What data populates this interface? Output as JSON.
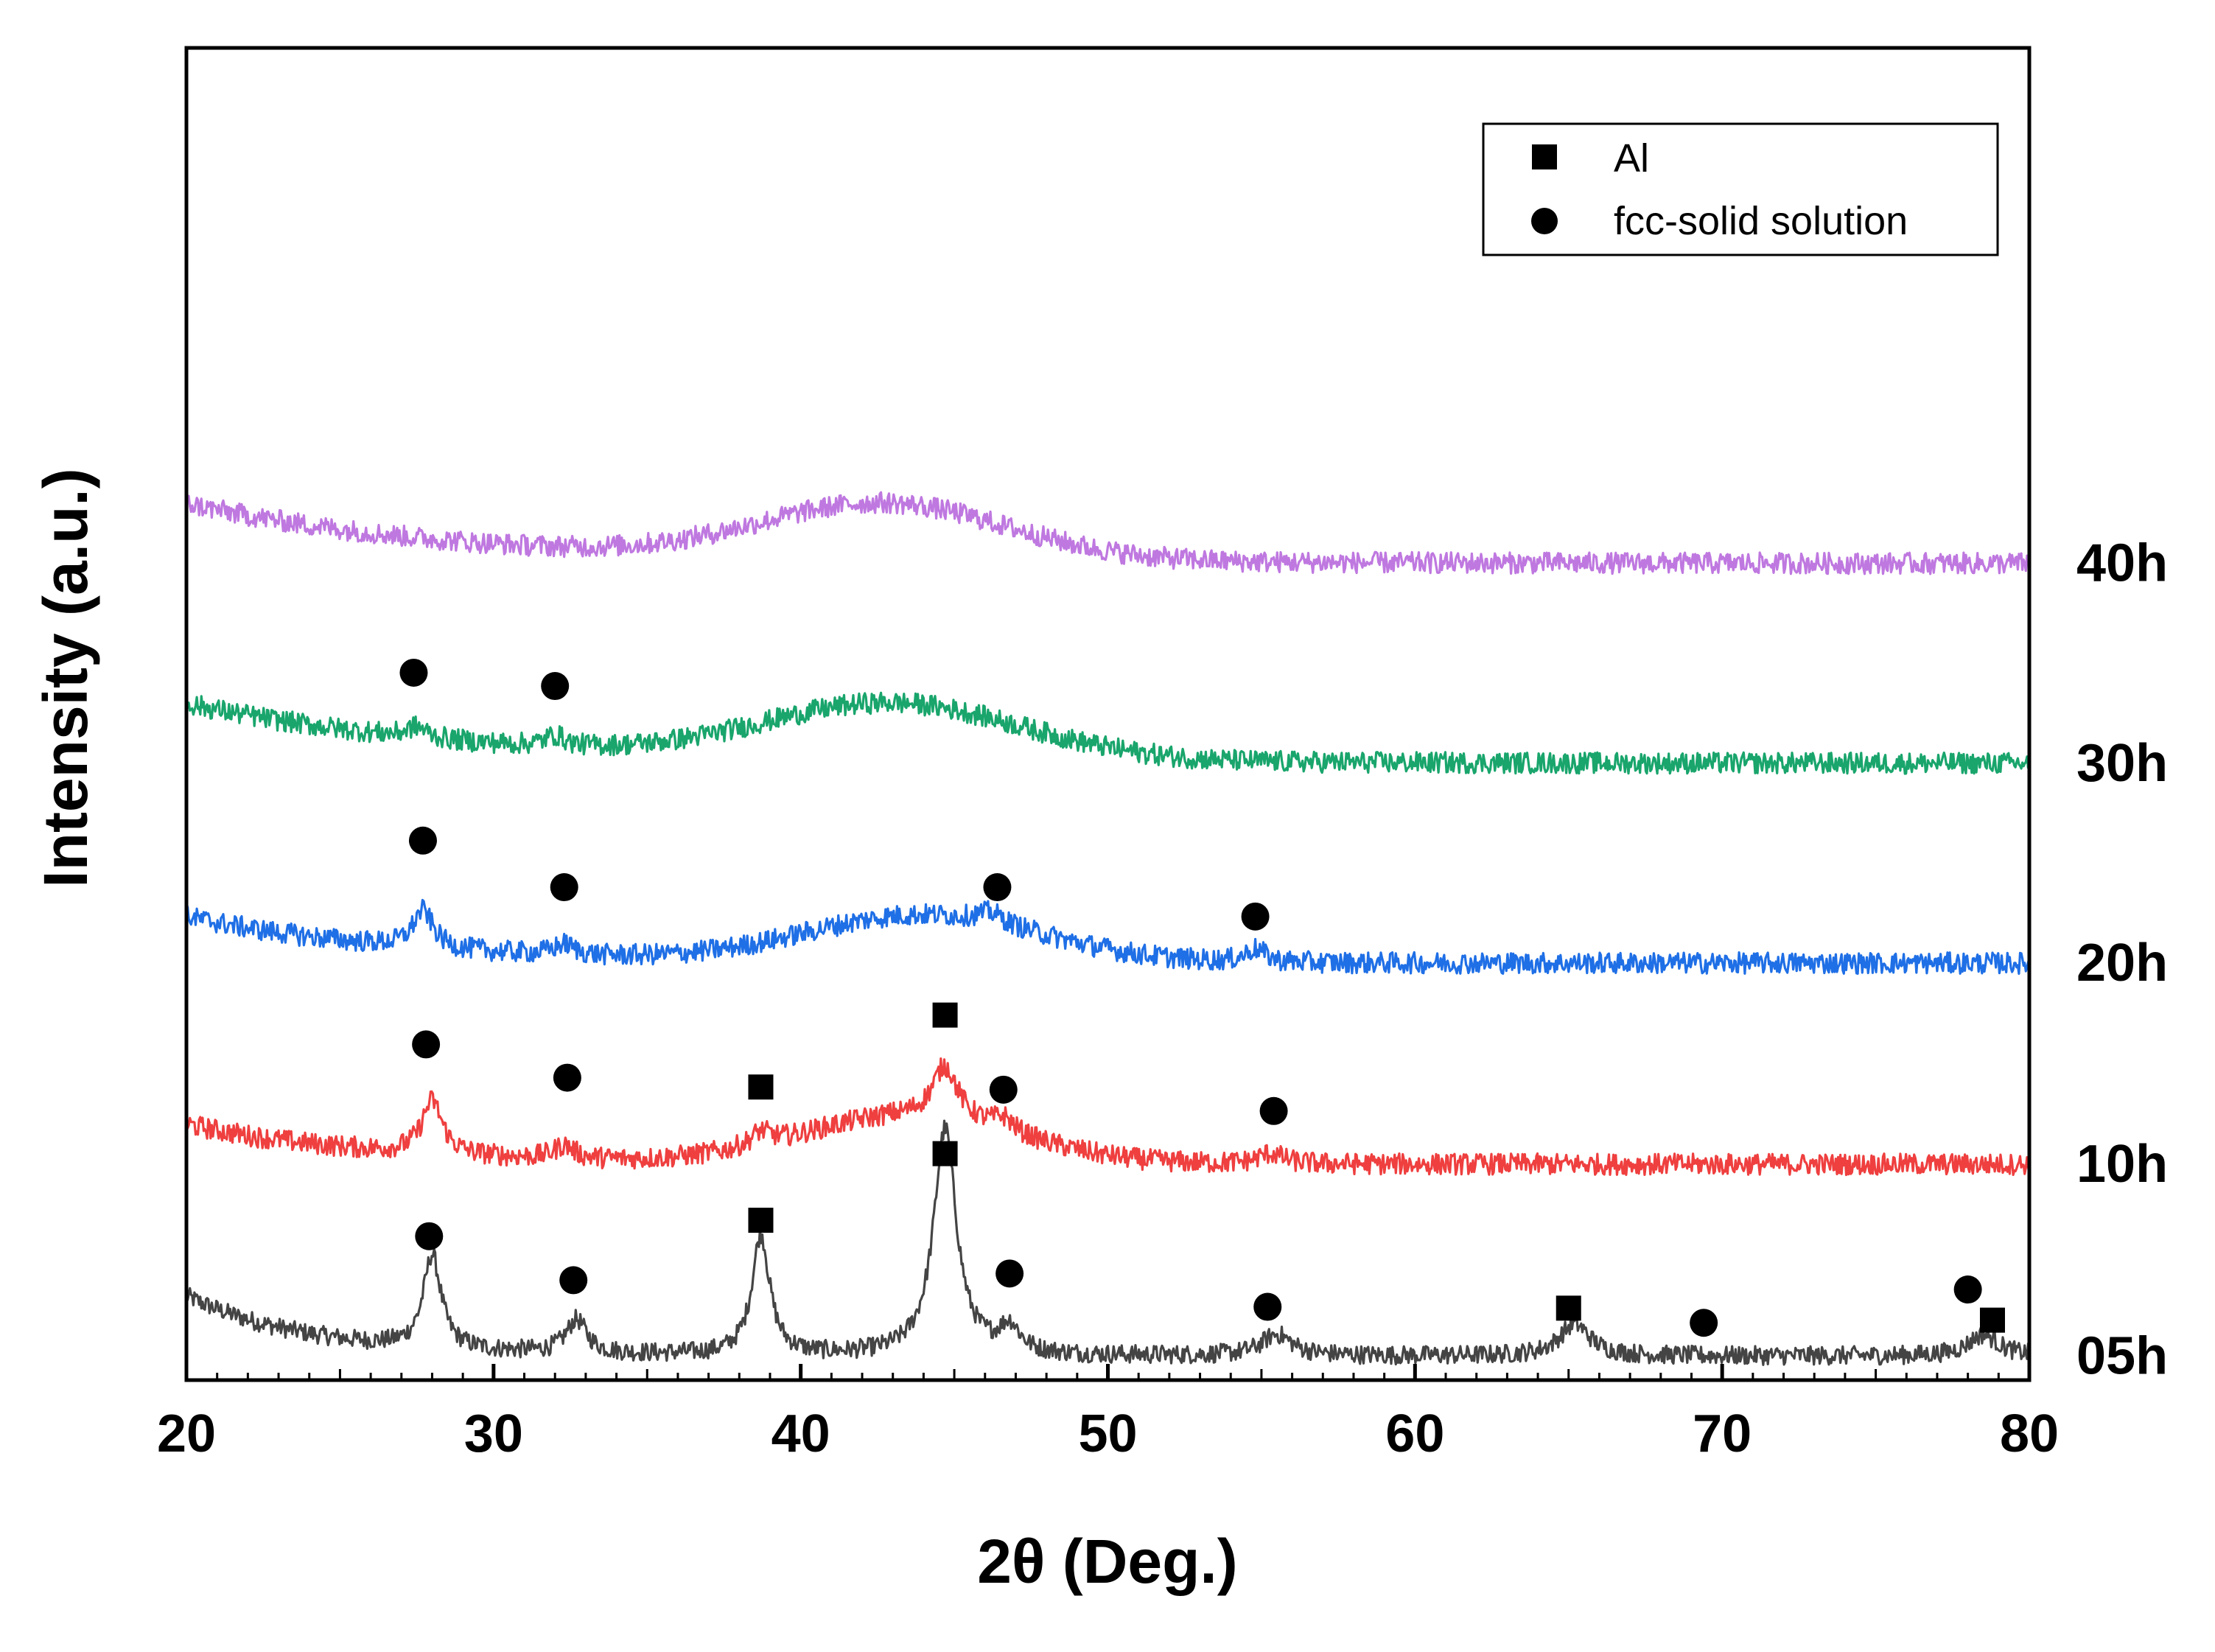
{
  "chart_data": {
    "type": "line",
    "title": "",
    "xlabel": "2θ (Deg.)",
    "ylabel": "Intensity (a.u.)",
    "xlim": [
      20,
      80
    ],
    "ylim": [
      0,
      100
    ],
    "xticks": [
      "20",
      "30",
      "40",
      "50",
      "60",
      "70",
      "80"
    ],
    "x_tick_values": [
      20,
      30,
      40,
      50,
      60,
      70,
      80
    ],
    "yticks_shown": false,
    "grid": false,
    "legend_position": "top-right",
    "legend": [
      {
        "marker": "square",
        "label": "Al"
      },
      {
        "marker": "circle",
        "label": "fcc-solid solution"
      }
    ],
    "series": [
      {
        "name": "05h",
        "color": "#444444",
        "baseline": 1.8,
        "noise": 0.7,
        "broad_hump": [],
        "peaks": [
          {
            "x": 28.0,
            "h": 7.0,
            "w": 0.35
          },
          {
            "x": 32.7,
            "h": 2.5,
            "w": 0.4
          },
          {
            "x": 38.7,
            "h": 9.0,
            "w": 0.35
          },
          {
            "x": 44.7,
            "h": 17.0,
            "w": 0.45
          },
          {
            "x": 46.8,
            "h": 2.0,
            "w": 0.4
          },
          {
            "x": 55.5,
            "h": 1.6,
            "w": 0.6
          },
          {
            "x": 65.2,
            "h": 2.4,
            "w": 0.6
          },
          {
            "x": 78.5,
            "h": 1.6,
            "w": 0.6
          }
        ],
        "decay": {
          "amp": 4.5,
          "tau": 4.0
        },
        "markers": [
          {
            "type": "circle",
            "x": 27.9,
            "y": 10.8
          },
          {
            "type": "circle",
            "x": 32.6,
            "y": 7.5
          },
          {
            "type": "square",
            "x": 38.7,
            "y": 12.0
          },
          {
            "type": "square",
            "x": 44.7,
            "y": 17.0
          },
          {
            "type": "circle",
            "x": 46.8,
            "y": 8.0
          },
          {
            "type": "circle",
            "x": 55.2,
            "y": 5.5
          },
          {
            "type": "square",
            "x": 65.0,
            "y": 5.4
          },
          {
            "type": "circle",
            "x": 69.4,
            "y": 4.3
          },
          {
            "type": "circle",
            "x": 78.0,
            "y": 6.8
          },
          {
            "type": "square",
            "x": 78.8,
            "y": 4.5
          }
        ]
      },
      {
        "name": "10h",
        "color": "#ef3f3f",
        "baseline": 16.2,
        "noise": 0.8,
        "broad_hump": [
          {
            "x": 43.5,
            "h": 3.5,
            "w": 3.5
          }
        ],
        "peaks": [
          {
            "x": 28.0,
            "h": 4.0,
            "w": 0.4
          },
          {
            "x": 32.3,
            "h": 1.0,
            "w": 0.4
          },
          {
            "x": 38.7,
            "h": 1.0,
            "w": 0.4
          },
          {
            "x": 44.7,
            "h": 4.0,
            "w": 0.5
          },
          {
            "x": 46.6,
            "h": 1.0,
            "w": 0.4
          },
          {
            "x": 55.3,
            "h": 0.8,
            "w": 0.5
          }
        ],
        "decay": {
          "amp": 3.0,
          "tau": 6.0
        },
        "markers": [
          {
            "type": "circle",
            "x": 27.8,
            "y": 25.2
          },
          {
            "type": "circle",
            "x": 32.4,
            "y": 22.7
          },
          {
            "type": "square",
            "x": 38.7,
            "y": 22.0
          },
          {
            "type": "square",
            "x": 44.7,
            "y": 27.4
          },
          {
            "type": "circle",
            "x": 46.6,
            "y": 21.8
          },
          {
            "type": "circle",
            "x": 55.4,
            "y": 20.2
          }
        ]
      },
      {
        "name": "20h",
        "color": "#1f6fe6",
        "baseline": 31.3,
        "noise": 0.8,
        "broad_hump": [
          {
            "x": 44.0,
            "h": 3.5,
            "w": 3.8
          }
        ],
        "peaks": [
          {
            "x": 27.7,
            "h": 2.8,
            "w": 0.4
          },
          {
            "x": 32.3,
            "h": 0.8,
            "w": 0.4
          },
          {
            "x": 46.2,
            "h": 0.8,
            "w": 0.5
          },
          {
            "x": 54.8,
            "h": 1.0,
            "w": 0.4
          }
        ],
        "decay": {
          "amp": 3.5,
          "tau": 7.0
        },
        "markers": [
          {
            "type": "circle",
            "x": 27.7,
            "y": 40.5
          },
          {
            "type": "circle",
            "x": 32.3,
            "y": 37.0
          },
          {
            "type": "circle",
            "x": 46.4,
            "y": 37.0
          },
          {
            "type": "circle",
            "x": 54.8,
            "y": 34.8
          }
        ]
      },
      {
        "name": "30h",
        "color": "#19a56c",
        "baseline": 46.3,
        "noise": 0.8,
        "broad_hump": [
          {
            "x": 43.0,
            "h": 4.2,
            "w": 4.2
          }
        ],
        "peaks": [
          {
            "x": 27.5,
            "h": 0.8,
            "w": 0.4
          },
          {
            "x": 32.0,
            "h": 0.8,
            "w": 0.4
          }
        ],
        "decay": {
          "amp": 4.5,
          "tau": 9.0
        },
        "markers": [
          {
            "type": "circle",
            "x": 27.4,
            "y": 53.1
          },
          {
            "type": "circle",
            "x": 32.0,
            "y": 52.1
          }
        ]
      },
      {
        "name": "40h",
        "color": "#bf78e0",
        "baseline": 61.3,
        "noise": 0.8,
        "broad_hump": [
          {
            "x": 42.7,
            "h": 4.2,
            "w": 4.0
          }
        ],
        "peaks": [],
        "decay": {
          "amp": 4.5,
          "tau": 9.0
        },
        "markers": []
      }
    ]
  }
}
